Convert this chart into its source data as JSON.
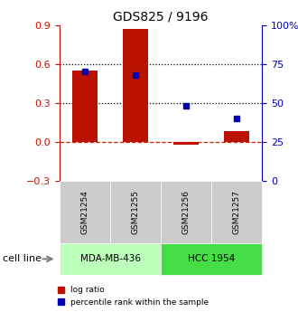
{
  "title": "GDS825 / 9196",
  "samples": [
    "GSM21254",
    "GSM21255",
    "GSM21256",
    "GSM21257"
  ],
  "log_ratio": [
    0.55,
    0.87,
    -0.02,
    0.08
  ],
  "percentile_rank": [
    70,
    68,
    48,
    40
  ],
  "cell_lines": [
    {
      "name": "MDA-MB-436",
      "samples": [
        0,
        1
      ],
      "color": "#bbffbb"
    },
    {
      "name": "HCC 1954",
      "samples": [
        2,
        3
      ],
      "color": "#44dd44"
    }
  ],
  "bar_color": "#bb1100",
  "point_color": "#0000bb",
  "left_ylim": [
    -0.3,
    0.9
  ],
  "right_ylim": [
    0,
    100
  ],
  "left_yticks": [
    -0.3,
    0.0,
    0.3,
    0.6,
    0.9
  ],
  "right_yticks": [
    0,
    25,
    50,
    75,
    100
  ],
  "right_yticklabels": [
    "0",
    "25",
    "50",
    "75",
    "100%"
  ],
  "dotted_lines": [
    0.3,
    0.6
  ],
  "dashed_zero_color": "#cc2200",
  "bar_width": 0.5,
  "sample_box_color": "#cccccc",
  "cell_line_label": "cell line",
  "legend_labels": [
    "log ratio",
    "percentile rank within the sample"
  ]
}
